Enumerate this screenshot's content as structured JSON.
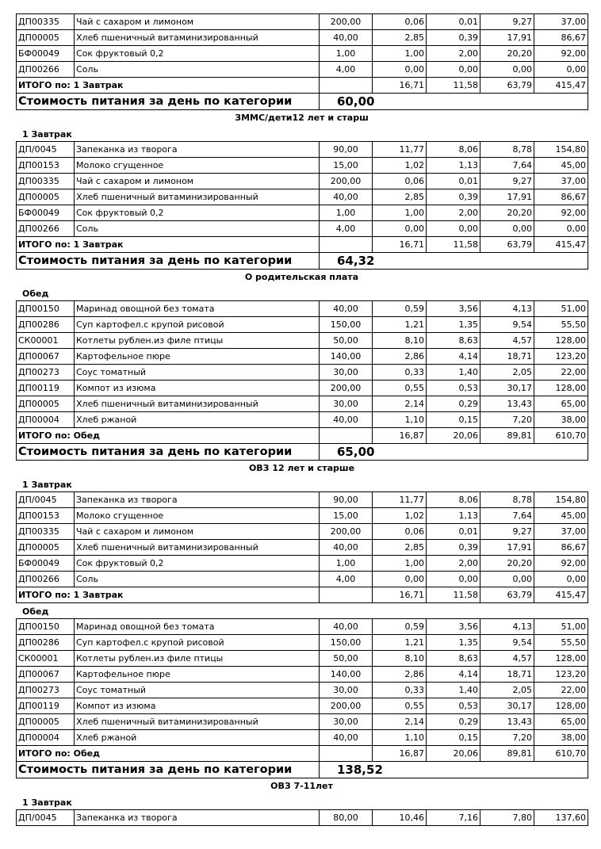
{
  "menus": {
    "breakfast_items": [
      [
        "ДП/0045",
        "Запеканка из творога",
        "90,00",
        "11,77",
        "8,06",
        "8,78",
        "154,80"
      ],
      [
        "ДП00153",
        "Молоко сгущенное",
        "15,00",
        "1,02",
        "1,13",
        "7,64",
        "45,00"
      ],
      [
        "ДП00335",
        "Чай с сахаром и  лимоном",
        "200,00",
        "0,06",
        "0,01",
        "9,27",
        "37,00"
      ],
      [
        "ДП00005",
        "Хлеб пшеничный витаминизированный",
        "40,00",
        "2,85",
        "0,39",
        "17,91",
        "86,67"
      ],
      [
        "БФ00049",
        "Сок фруктовый 0,2",
        "1,00",
        "1,00",
        "2,00",
        "20,20",
        "92,00"
      ],
      [
        "ДП00266",
        "Соль",
        "4,00",
        "0,00",
        "0,00",
        "0,00",
        "0,00"
      ]
    ],
    "breakfast_total": [
      "ИТОГО по: 1 Завтрак",
      "",
      "16,71",
      "11,58",
      "63,79",
      "415,47"
    ],
    "lunch_items": [
      [
        "ДП00150",
        "Маринад овощной без томата",
        "40,00",
        "0,59",
        "3,56",
        "4,13",
        "51,00"
      ],
      [
        "ДП00286",
        "Суп картофел.с крупой рисовой",
        "150,00",
        "1,21",
        "1,35",
        "9,54",
        "55,50"
      ],
      [
        "СК00001",
        "Котлеты рублен.из филе птицы",
        "50,00",
        "8,10",
        "8,63",
        "4,57",
        "128,00"
      ],
      [
        "ДП00067",
        "Картофельное пюре",
        "140,00",
        "2,86",
        "4,14",
        "18,71",
        "123,20"
      ],
      [
        "ДП00273",
        "Соус томатный",
        "30,00",
        "0,33",
        "1,40",
        "2,05",
        "22,00"
      ],
      [
        "ДП00119",
        "Компот из изюма",
        "200,00",
        "0,55",
        "0,53",
        "30,17",
        "128,00"
      ],
      [
        "ДП00005",
        "Хлеб пшеничный витаминизированный",
        "30,00",
        "2,14",
        "0,29",
        "13,43",
        "65,00"
      ],
      [
        "ДП00004",
        "Хлеб ржаной",
        "40,00",
        "1,10",
        "0,15",
        "7,20",
        "38,00"
      ]
    ],
    "lunch_total": [
      "ИТОГО по: Обед",
      "",
      "16,87",
      "20,06",
      "89,81",
      "610,70"
    ]
  },
  "cost_label": "Стоимость питания за день по категории",
  "blocks": [
    {
      "type": "table",
      "rows": [
        [
          "ДП00335",
          "Чай с сахаром и  лимоном",
          "200,00",
          "0,06",
          "0,01",
          "9,27",
          "37,00"
        ],
        [
          "ДП00005",
          "Хлеб пшеничный витаминизированный",
          "40,00",
          "2,85",
          "0,39",
          "17,91",
          "86,67"
        ],
        [
          "БФ00049",
          "Сок фруктовый 0,2",
          "1,00",
          "1,00",
          "2,00",
          "20,20",
          "92,00"
        ],
        [
          "ДП00266",
          "Соль",
          "4,00",
          "0,00",
          "0,00",
          "0,00",
          "0,00"
        ]
      ],
      "total": "breakfast_total",
      "cost": "60,00"
    },
    {
      "type": "cat",
      "text": "ЗММС/дети12 лет и старш"
    },
    {
      "type": "meal",
      "text": "1 Завтрак"
    },
    {
      "type": "table",
      "menu": "breakfast_items",
      "total": "breakfast_total",
      "cost": "64,32"
    },
    {
      "type": "cat",
      "text": "О родительская плата"
    },
    {
      "type": "meal",
      "text": "Обед"
    },
    {
      "type": "table",
      "menu": "lunch_items",
      "total": "lunch_total",
      "cost": "65,00"
    },
    {
      "type": "cat",
      "text": "ОВЗ 12 лет и старше"
    },
    {
      "type": "meal",
      "text": "1 Завтрак"
    },
    {
      "type": "table",
      "menu": "breakfast_items",
      "total": "breakfast_total"
    },
    {
      "type": "meal",
      "text": "Обед"
    },
    {
      "type": "table",
      "menu": "lunch_items",
      "total": "lunch_total",
      "cost": "138,52"
    },
    {
      "type": "cat",
      "text": "ОВЗ 7-11лет"
    },
    {
      "type": "meal",
      "text": "1 Завтрак"
    },
    {
      "type": "table",
      "rows": [
        [
          "ДП/0045",
          "Запеканка из творога",
          "80,00",
          "10,46",
          "7,16",
          "7,80",
          "137,60"
        ]
      ]
    }
  ]
}
